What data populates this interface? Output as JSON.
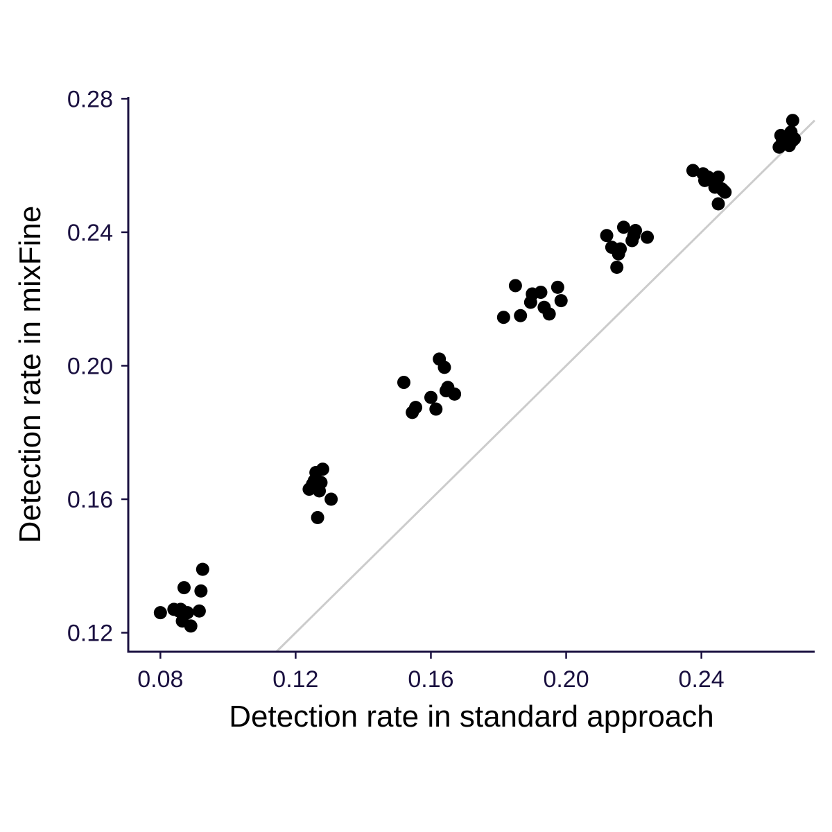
{
  "chart_data": {
    "type": "scatter",
    "title": "",
    "xlabel": "Detection rate in standard approach",
    "ylabel": "Detection rate in mixFine",
    "xlim": [
      0.0705,
      0.2735
    ],
    "ylim": [
      0.1143,
      0.2805
    ],
    "xticks": [
      0.08,
      0.12,
      0.16,
      0.2,
      0.24
    ],
    "yticks": [
      0.12,
      0.16,
      0.2,
      0.24,
      0.28
    ],
    "xtick_labels": [
      "0.08",
      "0.12",
      "0.16",
      "0.20",
      "0.24"
    ],
    "ytick_labels": [
      "0.12",
      "0.16",
      "0.20",
      "0.24",
      "0.28"
    ],
    "grid": false,
    "legend": "none",
    "reference_line": {
      "slope": 1,
      "intercept": 0,
      "color": "#cccccc"
    },
    "axis_color": "#1a1040",
    "point_color": "#000000",
    "points": [
      {
        "x": 0.08,
        "y": 0.126
      },
      {
        "x": 0.084,
        "y": 0.127
      },
      {
        "x": 0.0855,
        "y": 0.1265
      },
      {
        "x": 0.086,
        "y": 0.127
      },
      {
        "x": 0.0865,
        "y": 0.1235
      },
      {
        "x": 0.087,
        "y": 0.1335
      },
      {
        "x": 0.088,
        "y": 0.126
      },
      {
        "x": 0.089,
        "y": 0.122
      },
      {
        "x": 0.0915,
        "y": 0.1265
      },
      {
        "x": 0.092,
        "y": 0.1325
      },
      {
        "x": 0.0925,
        "y": 0.139
      },
      {
        "x": 0.124,
        "y": 0.163
      },
      {
        "x": 0.125,
        "y": 0.1645
      },
      {
        "x": 0.1255,
        "y": 0.1655
      },
      {
        "x": 0.126,
        "y": 0.168
      },
      {
        "x": 0.1265,
        "y": 0.1545
      },
      {
        "x": 0.127,
        "y": 0.1625
      },
      {
        "x": 0.1275,
        "y": 0.165
      },
      {
        "x": 0.128,
        "y": 0.169
      },
      {
        "x": 0.1305,
        "y": 0.16
      },
      {
        "x": 0.152,
        "y": 0.195
      },
      {
        "x": 0.1545,
        "y": 0.186
      },
      {
        "x": 0.1555,
        "y": 0.1875
      },
      {
        "x": 0.16,
        "y": 0.1905
      },
      {
        "x": 0.1615,
        "y": 0.187
      },
      {
        "x": 0.1625,
        "y": 0.202
      },
      {
        "x": 0.164,
        "y": 0.1995
      },
      {
        "x": 0.1645,
        "y": 0.1925
      },
      {
        "x": 0.165,
        "y": 0.1935
      },
      {
        "x": 0.167,
        "y": 0.1915
      },
      {
        "x": 0.1815,
        "y": 0.2145
      },
      {
        "x": 0.185,
        "y": 0.224
      },
      {
        "x": 0.1865,
        "y": 0.215
      },
      {
        "x": 0.1895,
        "y": 0.219
      },
      {
        "x": 0.19,
        "y": 0.2215
      },
      {
        "x": 0.1925,
        "y": 0.222
      },
      {
        "x": 0.1935,
        "y": 0.2175
      },
      {
        "x": 0.195,
        "y": 0.2155
      },
      {
        "x": 0.1975,
        "y": 0.2235
      },
      {
        "x": 0.1985,
        "y": 0.2195
      },
      {
        "x": 0.212,
        "y": 0.239
      },
      {
        "x": 0.2135,
        "y": 0.2355
      },
      {
        "x": 0.215,
        "y": 0.2295
      },
      {
        "x": 0.2155,
        "y": 0.2335
      },
      {
        "x": 0.216,
        "y": 0.235
      },
      {
        "x": 0.217,
        "y": 0.2415
      },
      {
        "x": 0.2195,
        "y": 0.2375
      },
      {
        "x": 0.22,
        "y": 0.239
      },
      {
        "x": 0.2205,
        "y": 0.2405
      },
      {
        "x": 0.224,
        "y": 0.2385
      },
      {
        "x": 0.2375,
        "y": 0.2585
      },
      {
        "x": 0.2405,
        "y": 0.2575
      },
      {
        "x": 0.241,
        "y": 0.2555
      },
      {
        "x": 0.242,
        "y": 0.2565
      },
      {
        "x": 0.244,
        "y": 0.2535
      },
      {
        "x": 0.245,
        "y": 0.2565
      },
      {
        "x": 0.245,
        "y": 0.2485
      },
      {
        "x": 0.246,
        "y": 0.253
      },
      {
        "x": 0.2465,
        "y": 0.2525
      },
      {
        "x": 0.247,
        "y": 0.252
      },
      {
        "x": 0.263,
        "y": 0.2655
      },
      {
        "x": 0.2635,
        "y": 0.269
      },
      {
        "x": 0.264,
        "y": 0.2675
      },
      {
        "x": 0.265,
        "y": 0.267
      },
      {
        "x": 0.2655,
        "y": 0.2685
      },
      {
        "x": 0.266,
        "y": 0.266
      },
      {
        "x": 0.2665,
        "y": 0.27
      },
      {
        "x": 0.267,
        "y": 0.2735
      },
      {
        "x": 0.267,
        "y": 0.2675
      },
      {
        "x": 0.2675,
        "y": 0.268
      }
    ]
  }
}
